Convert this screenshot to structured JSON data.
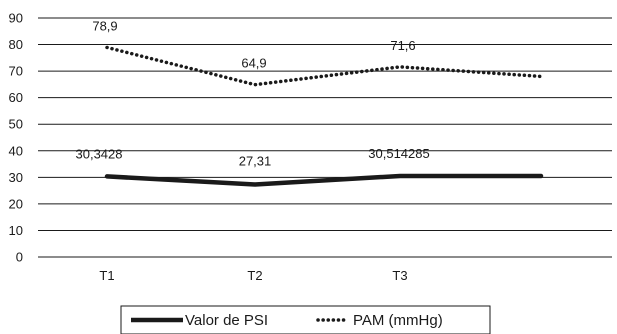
{
  "chart_data": {
    "type": "line",
    "categories": [
      "T1",
      "T2",
      "T3",
      ""
    ],
    "ylim": [
      0,
      90
    ],
    "yticks": [
      0,
      10,
      20,
      30,
      40,
      50,
      60,
      70,
      80,
      90
    ],
    "grid": true,
    "legend_position": "bottom",
    "series": [
      {
        "name": "Valor de PSI",
        "style": "solid",
        "color": "#1a1a1a",
        "values": [
          30.3428,
          27.31,
          30.514285,
          30.5
        ],
        "data_labels": [
          "30,3428",
          "27,31",
          "30,514285",
          ""
        ]
      },
      {
        "name": "PAM (mmHg)",
        "style": "dotted",
        "color": "#1a1a1a",
        "values": [
          78.9,
          64.9,
          71.6,
          68
        ],
        "data_labels": [
          "78,9",
          "64,9",
          "71,6",
          ""
        ]
      }
    ]
  }
}
